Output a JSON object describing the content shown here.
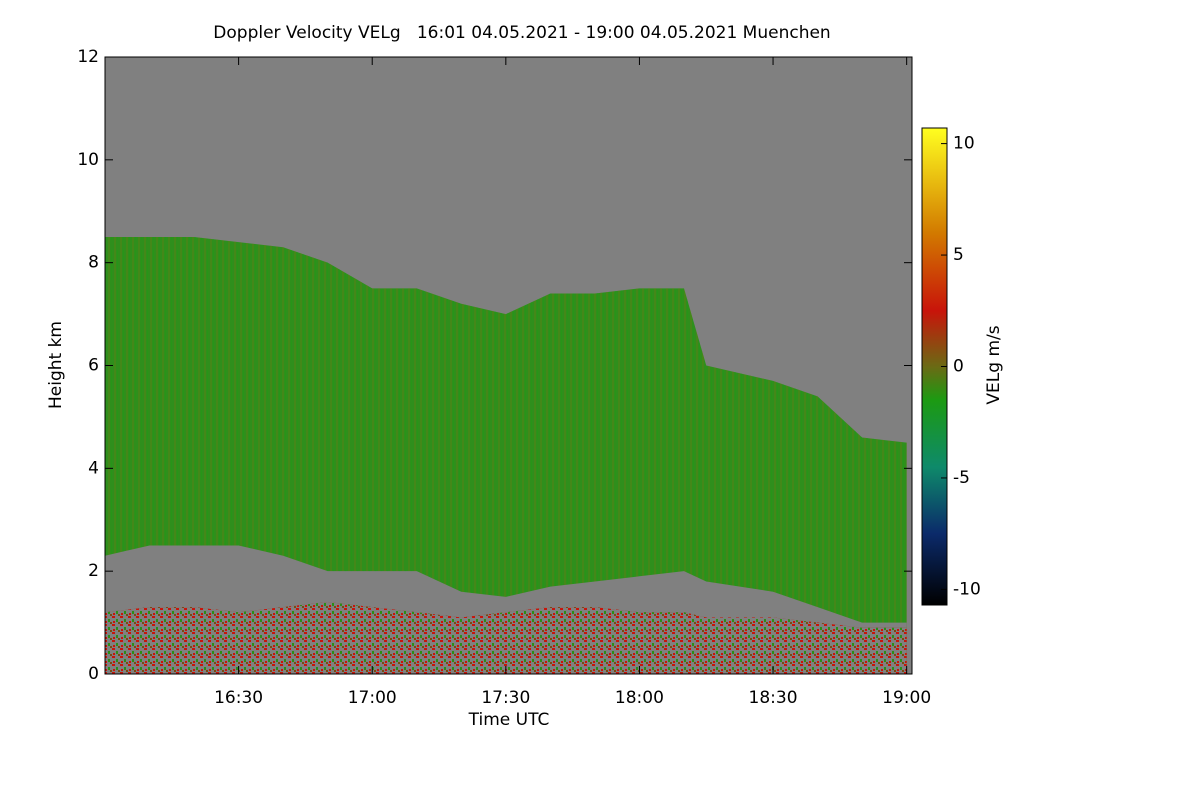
{
  "chart_data": {
    "type": "time-height",
    "title": "Doppler Velocity VELg   16:01 04.05.2021 - 19:00 04.05.2021 Muenchen",
    "xlabel": "Time UTC",
    "ylabel": "Height km",
    "colorbar_label": "VELg m/s",
    "background_color": "#808080",
    "x": [
      16.0,
      16.1667,
      16.3333,
      16.5,
      16.6667,
      16.8333,
      17.0,
      17.1667,
      17.3333,
      17.5,
      17.6667,
      17.8333,
      18.0,
      18.1667,
      18.25,
      18.5,
      18.6667,
      18.8333,
      19.0
    ],
    "echo_top": {
      "color": "#2f8f1c",
      "values": [
        8.5,
        8.5,
        8.5,
        8.4,
        8.3,
        8.0,
        7.5,
        7.5,
        7.2,
        7.0,
        7.4,
        7.4,
        7.5,
        7.5,
        6.0,
        5.7,
        5.4,
        4.6,
        4.5
      ]
    },
    "echo_base": {
      "color": "#808080",
      "values": [
        2.3,
        2.5,
        2.5,
        2.5,
        2.3,
        2.0,
        2.0,
        2.0,
        1.6,
        1.5,
        1.7,
        1.8,
        1.9,
        2.0,
        1.8,
        1.6,
        1.3,
        1.0,
        1.0
      ]
    },
    "ground_layer_top": {
      "color": "#b0200c",
      "values": [
        1.2,
        1.3,
        1.3,
        1.2,
        1.3,
        1.4,
        1.3,
        1.2,
        1.1,
        1.2,
        1.3,
        1.3,
        1.2,
        1.2,
        1.1,
        1.1,
        1.0,
        0.9,
        0.9
      ]
    },
    "xlim": [
      16.0,
      19.02
    ],
    "xticks": [
      {
        "value": 16.5,
        "label": "16:30"
      },
      {
        "value": 17.0,
        "label": "17:00"
      },
      {
        "value": 17.5,
        "label": "17:30"
      },
      {
        "value": 18.0,
        "label": "18:00"
      },
      {
        "value": 18.5,
        "label": "18:30"
      },
      {
        "value": 19.0,
        "label": "19:00"
      }
    ],
    "ylim": [
      0,
      12
    ],
    "yticks": [
      0,
      2,
      4,
      6,
      8,
      10,
      12
    ],
    "clim": [
      -10.7,
      10.7
    ],
    "cticks": [
      -10,
      -5,
      0,
      5,
      10
    ],
    "colormap": [
      [
        -10.7,
        "#000000"
      ],
      [
        -7.5,
        "#0b2a6a"
      ],
      [
        -4.5,
        "#0e8a6a"
      ],
      [
        -1.5,
        "#1c9a12"
      ],
      [
        0,
        "#6b6a14"
      ],
      [
        2.5,
        "#c8140a"
      ],
      [
        6,
        "#d27a00"
      ],
      [
        10.7,
        "#ffff20"
      ]
    ]
  }
}
